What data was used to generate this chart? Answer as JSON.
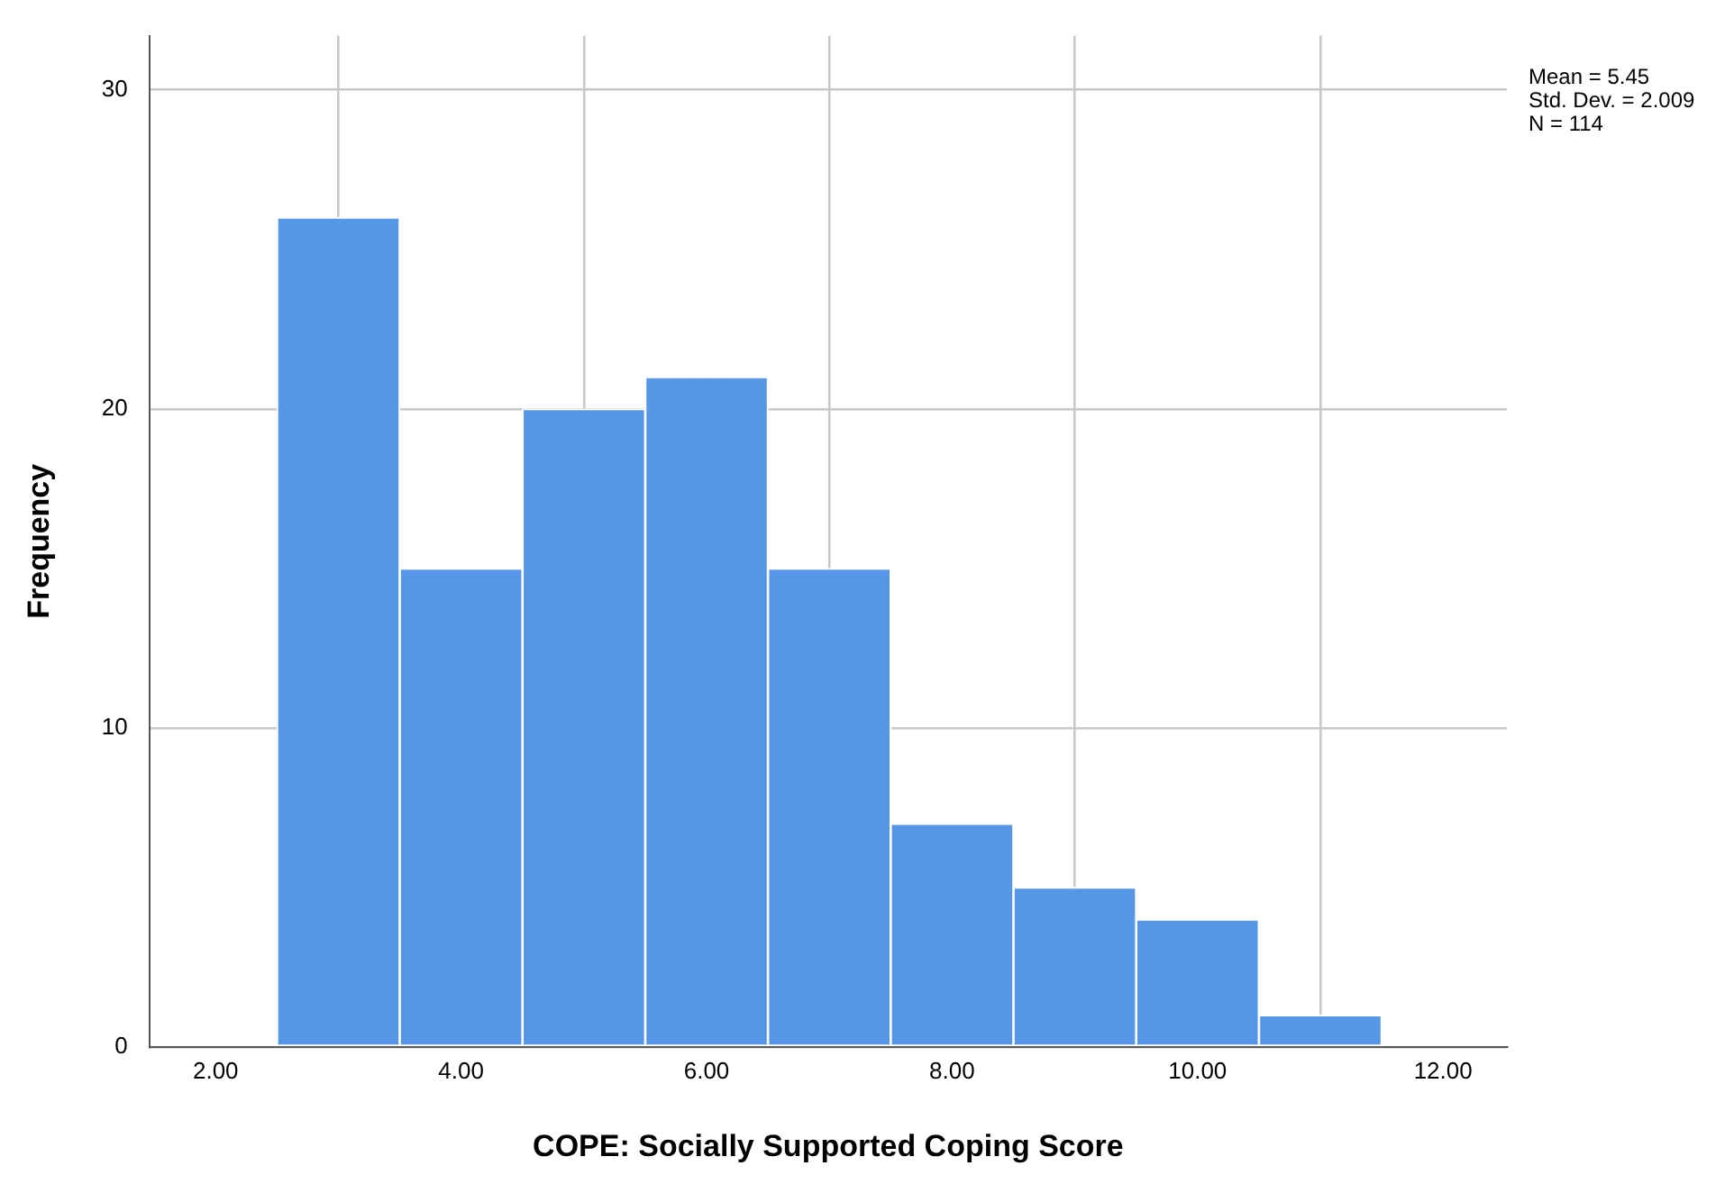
{
  "chart_data": {
    "type": "histogram",
    "xlabel": "COPE: Socially Supported Coping Score",
    "ylabel": "Frequency",
    "bins": [
      2.5,
      3.5,
      4.5,
      5.5,
      6.5,
      7.5,
      8.5,
      9.5,
      10.5,
      11.5
    ],
    "values": [
      26,
      15,
      20,
      21,
      15,
      7,
      5,
      4,
      1
    ],
    "color": "#5596e6",
    "xlim": [
      1.46,
      12.52
    ],
    "xticks": [
      {
        "value": 2,
        "label": "2.00"
      },
      {
        "value": 4,
        "label": "4.00"
      },
      {
        "value": 6,
        "label": "6.00"
      },
      {
        "value": 8,
        "label": "8.00"
      },
      {
        "value": 10,
        "label": "10.00"
      },
      {
        "value": 12,
        "label": "12.00"
      }
    ],
    "ylim": [
      0,
      31.7
    ],
    "yticks": [
      0,
      10,
      20,
      30
    ],
    "grid": true,
    "annotations": [
      "Mean = 5.45",
      "Std. Dev. = 2.009",
      "N = 114"
    ]
  }
}
